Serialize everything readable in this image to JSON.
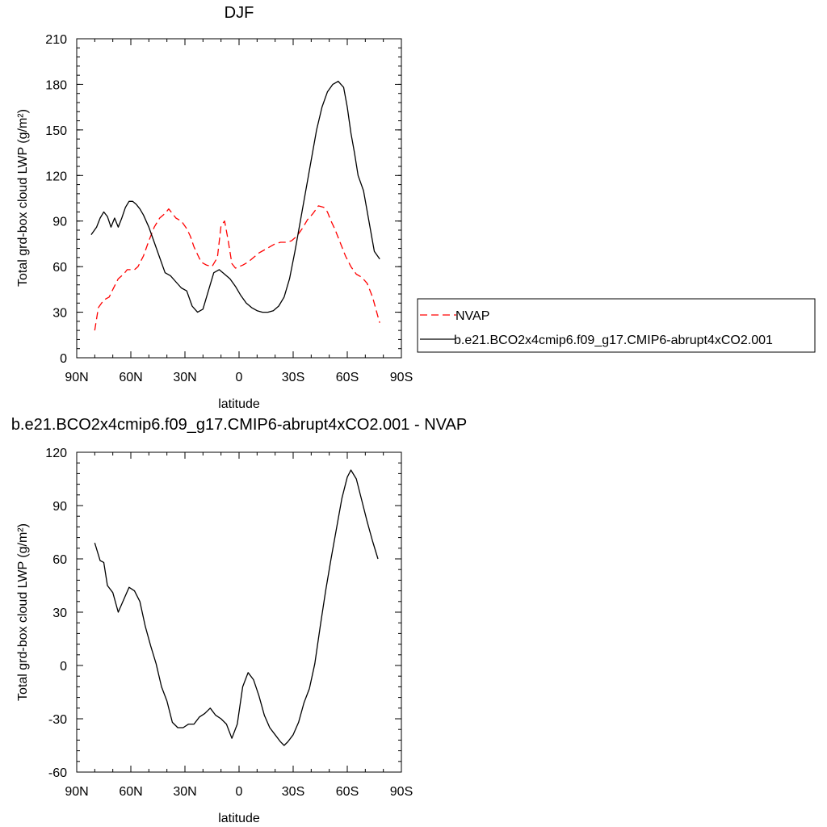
{
  "chart_data": [
    {
      "type": "line",
      "title": "DJF",
      "xlabel": "latitude",
      "ylabel": "Total grd-box cloud LWP (g/m²)",
      "ylim": [
        0,
        210
      ],
      "xlim": [
        -90,
        90
      ],
      "x_ticks": [
        -90,
        -60,
        -30,
        0,
        30,
        60,
        90
      ],
      "x_tick_labels": [
        "90N",
        "60N",
        "30N",
        "0",
        "30S",
        "60S",
        "90S"
      ],
      "y_ticks": [
        0,
        30,
        60,
        90,
        120,
        150,
        180,
        210
      ],
      "y_tick_labels": [
        "0",
        "30",
        "60",
        "90",
        "120",
        "150",
        "180",
        "210"
      ],
      "grid": false,
      "legend_position": "right",
      "series": [
        {
          "name": "NVAP",
          "color": "#ff0000",
          "style": "dashed",
          "x": [
            -80,
            -78,
            -75,
            -72,
            -70,
            -67,
            -64,
            -62,
            -60,
            -58,
            -56,
            -53,
            -50,
            -47,
            -44,
            -41,
            -39,
            -37,
            -35,
            -32,
            -29,
            -27,
            -25,
            -23,
            -21,
            -18,
            -15,
            -12,
            -10,
            -8,
            -6,
            -4,
            -2,
            0,
            2,
            5,
            8,
            11,
            14,
            17,
            20,
            23,
            26,
            29,
            32,
            35,
            38,
            41,
            44,
            47,
            49,
            51,
            53,
            56,
            59,
            62,
            65,
            68,
            71,
            74,
            77,
            78
          ],
          "y": [
            18,
            33,
            38,
            40,
            45,
            52,
            55,
            58,
            58,
            58,
            60,
            67,
            77,
            86,
            92,
            95,
            98,
            95,
            92,
            90,
            85,
            80,
            73,
            68,
            63,
            61,
            60,
            66,
            87,
            90,
            77,
            62,
            59,
            60,
            61,
            63,
            66,
            69,
            71,
            73,
            75,
            76,
            76,
            77,
            80,
            85,
            91,
            95,
            100,
            99,
            96,
            90,
            85,
            76,
            67,
            60,
            55,
            53,
            49,
            40,
            27,
            23
          ]
        },
        {
          "name": "b.e21.BCO2x4cmip6.f09_g17.CMIP6-abrupt4xCO2.001",
          "color": "#000000",
          "style": "solid",
          "x": [
            -82,
            -79,
            -77,
            -75,
            -73,
            -71,
            -69,
            -67,
            -65,
            -63,
            -61,
            -59,
            -57,
            -55,
            -53,
            -50,
            -47,
            -44,
            -41,
            -38,
            -35,
            -32,
            -29,
            -26,
            -23,
            -20,
            -17,
            -14,
            -11,
            -8,
            -5,
            -2,
            1,
            4,
            7,
            10,
            13,
            16,
            19,
            22,
            25,
            28,
            31,
            34,
            37,
            40,
            43,
            46,
            49,
            52,
            55,
            58,
            60,
            62,
            64,
            66,
            69,
            72,
            75,
            78
          ],
          "y": [
            81,
            86,
            92,
            96,
            93,
            86,
            92,
            86,
            92,
            99,
            103,
            103,
            101,
            98,
            94,
            86,
            76,
            66,
            56,
            54,
            50,
            46,
            44,
            34,
            30,
            32,
            44,
            56,
            58,
            55,
            52,
            47,
            41,
            36,
            33,
            31,
            30,
            30,
            31,
            34,
            40,
            52,
            70,
            90,
            110,
            130,
            150,
            165,
            175,
            180,
            182,
            178,
            165,
            148,
            135,
            120,
            110,
            90,
            70,
            65
          ]
        }
      ]
    },
    {
      "type": "line",
      "title": "b.e21.BCO2x4cmip6.f09_g17.CMIP6-abrupt4xCO2.001 - NVAP",
      "xlabel": "latitude",
      "ylabel": "Total grd-box cloud LWP (g/m²)",
      "ylim": [
        -60,
        120
      ],
      "xlim": [
        -90,
        90
      ],
      "x_ticks": [
        -90,
        -60,
        -30,
        0,
        30,
        60,
        90
      ],
      "x_tick_labels": [
        "90N",
        "60N",
        "30N",
        "0",
        "30S",
        "60S",
        "90S"
      ],
      "y_ticks": [
        -60,
        -30,
        0,
        30,
        60,
        90,
        120
      ],
      "y_tick_labels": [
        "-60",
        "-30",
        "0",
        "30",
        "60",
        "90",
        "120"
      ],
      "grid": false,
      "series": [
        {
          "color": "#000000",
          "style": "solid",
          "x": [
            -80,
            -77,
            -75,
            -73,
            -70,
            -67,
            -64,
            -61,
            -58,
            -55,
            -52,
            -49,
            -46,
            -43,
            -40,
            -37,
            -34,
            -31,
            -28,
            -25,
            -22,
            -19,
            -16,
            -13,
            -10,
            -7,
            -4,
            -1,
            2,
            5,
            8,
            11,
            14,
            17,
            20,
            23,
            25,
            27,
            30,
            33,
            36,
            39,
            42,
            45,
            48,
            51,
            54,
            57,
            60,
            62,
            65,
            68,
            71,
            74,
            77
          ],
          "y": [
            69,
            59,
            58,
            45,
            41,
            30,
            37,
            44,
            42,
            36,
            22,
            11,
            1,
            -12,
            -20,
            -32,
            -35,
            -35,
            -33,
            -33,
            -29,
            -27,
            -24,
            -28,
            -30,
            -33,
            -41,
            -33,
            -12,
            -4,
            -8,
            -17,
            -28,
            -35,
            -39,
            -43,
            -45,
            -43,
            -39,
            -32,
            -21,
            -13,
            1,
            22,
            42,
            60,
            77,
            94,
            106,
            110,
            105,
            93,
            81,
            70,
            60
          ]
        }
      ]
    }
  ]
}
